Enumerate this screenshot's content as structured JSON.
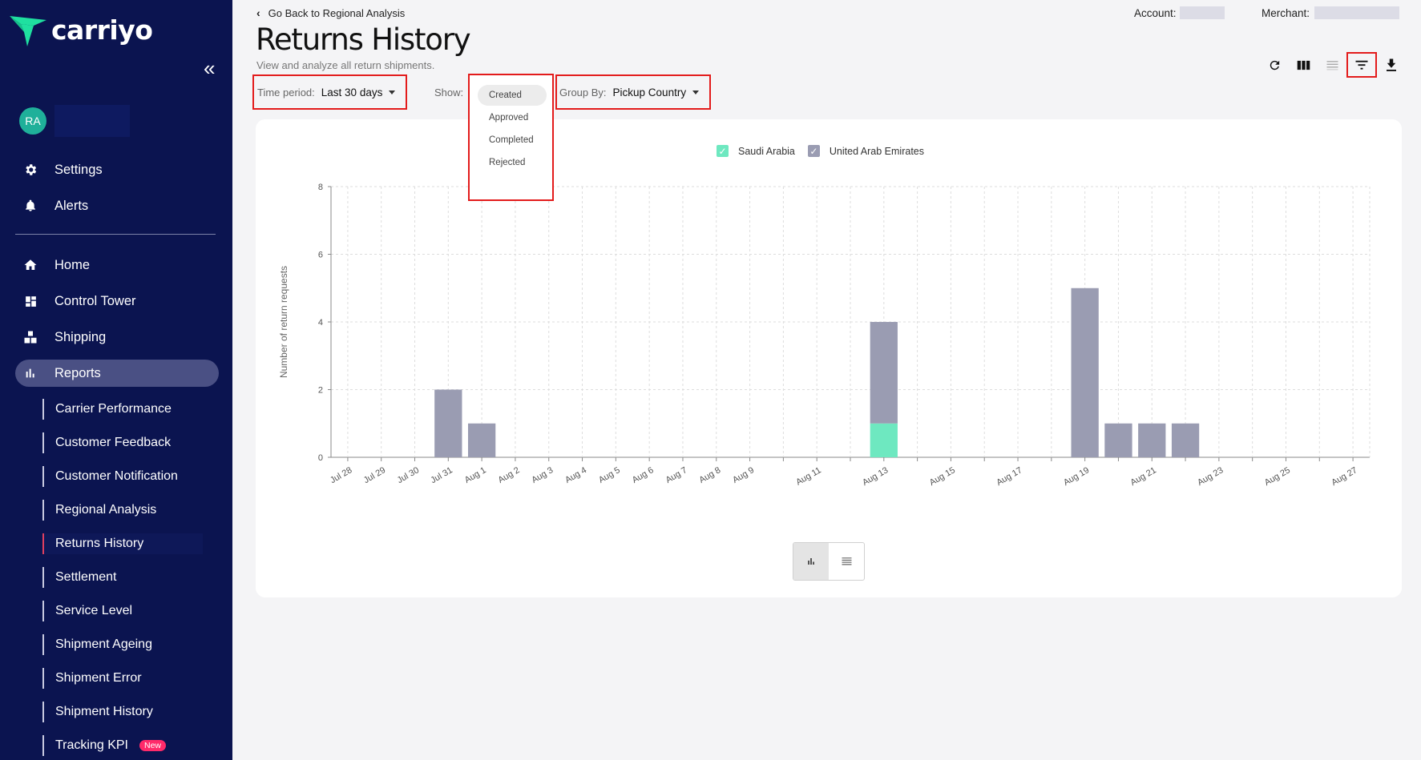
{
  "brand": {
    "name": "carriyo",
    "logo_color": "#1fe0a0"
  },
  "sidebar": {
    "collapse_icon": "double-chevron-left-icon",
    "user": {
      "initials": "RA"
    },
    "top_items": [
      {
        "label": "Settings",
        "icon": "gear-icon"
      },
      {
        "label": "Alerts",
        "icon": "bell-icon"
      }
    ],
    "main_items": [
      {
        "label": "Home",
        "icon": "home-icon"
      },
      {
        "label": "Control Tower",
        "icon": "dashboard-icon"
      },
      {
        "label": "Shipping",
        "icon": "boxes-icon"
      },
      {
        "label": "Reports",
        "icon": "bar-chart-icon",
        "active": true
      }
    ],
    "report_items": [
      {
        "label": "Carrier Performance"
      },
      {
        "label": "Customer Feedback"
      },
      {
        "label": "Customer Notification"
      },
      {
        "label": "Regional Analysis"
      },
      {
        "label": "Returns History",
        "active": true
      },
      {
        "label": "Settlement"
      },
      {
        "label": "Service Level"
      },
      {
        "label": "Shipment Ageing"
      },
      {
        "label": "Shipment Error"
      },
      {
        "label": "Shipment History"
      },
      {
        "label": "Tracking KPI",
        "badge": "New"
      }
    ]
  },
  "header": {
    "back_label": "Go Back to Regional Analysis",
    "account_label": "Account:",
    "merchant_label": "Merchant:",
    "title": "Returns History",
    "subtitle": "View and analyze all return shipments."
  },
  "toolbar": {
    "buttons": [
      "refresh-icon",
      "columns-icon",
      "density-icon",
      "filter-icon",
      "download-icon"
    ]
  },
  "filters": {
    "time_period": {
      "label": "Time period:",
      "value": "Last 30 days"
    },
    "show": {
      "label": "Show:",
      "options": [
        "Created",
        "Approved",
        "Completed",
        "Rejected"
      ],
      "selected": "Created"
    },
    "group_by": {
      "label": "Group By:",
      "value": "Pickup Country"
    }
  },
  "chart_data": {
    "type": "bar",
    "stacked": true,
    "ylabel": "Number of return requests",
    "ylim": [
      0,
      8
    ],
    "yticks": [
      0,
      2,
      4,
      6,
      8
    ],
    "categories": [
      "Jul 28",
      "Jul 29",
      "Jul 30",
      "Jul 31",
      "Aug 1",
      "Aug 2",
      "Aug 3",
      "Aug 4",
      "Aug 5",
      "Aug 6",
      "Aug 7",
      "Aug 8",
      "Aug 9",
      "Aug 10",
      "Aug 11",
      "Aug 12",
      "Aug 13",
      "Aug 14",
      "Aug 15",
      "Aug 16",
      "Aug 17",
      "Aug 18",
      "Aug 19",
      "Aug 20",
      "Aug 21",
      "Aug 22",
      "Aug 23",
      "Aug 24",
      "Aug 25",
      "Aug 26",
      "Aug 27"
    ],
    "tick_labels": [
      "Jul 28",
      "Jul 29",
      "Jul 30",
      "Jul 31",
      "Aug 1",
      "Aug 2",
      "Aug 3",
      "Aug 4",
      "Aug 5",
      "Aug 6",
      "Aug 7",
      "Aug 8",
      "Aug 9",
      "",
      "Aug 11",
      "",
      "Aug 13",
      "",
      "Aug 15",
      "",
      "Aug 17",
      "",
      "Aug 19",
      "",
      "Aug 21",
      "",
      "Aug 23",
      "",
      "Aug 25",
      "",
      "Aug 27"
    ],
    "series": [
      {
        "name": "Saudi Arabia",
        "color": "#6ee8c0",
        "values": [
          0,
          0,
          0,
          0,
          0,
          0,
          0,
          0,
          0,
          0,
          0,
          0,
          0,
          0,
          0,
          0,
          1,
          0,
          0,
          0,
          0,
          0,
          0,
          0,
          0,
          0,
          0,
          0,
          0,
          0,
          0
        ]
      },
      {
        "name": "United Arab Emirates",
        "color": "#9a9cb2",
        "values": [
          0,
          0,
          0,
          2,
          1,
          0,
          0,
          0,
          0,
          0,
          0,
          0,
          0,
          0,
          0,
          0,
          3,
          0,
          0,
          0,
          0,
          0,
          5,
          1,
          1,
          1,
          0,
          0,
          0,
          0,
          0
        ]
      }
    ],
    "grid": true,
    "legend": "top-center"
  },
  "view_toggle": {
    "options": [
      "chart-view-icon",
      "table-view-icon"
    ],
    "selected": "chart-view-icon"
  }
}
